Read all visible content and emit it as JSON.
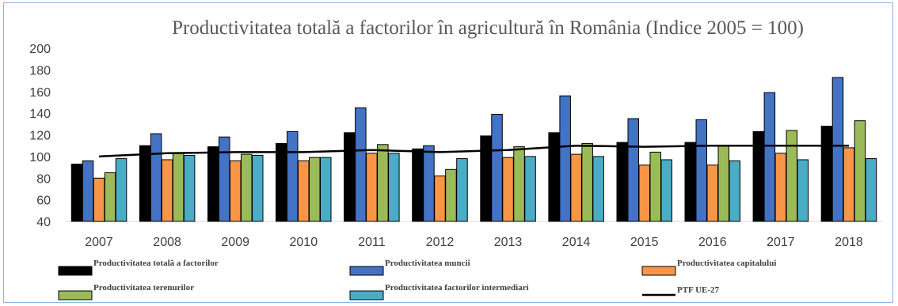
{
  "chart_data": {
    "type": "bar",
    "title": "Productivitatea totală a factorilor în agricultură în România (Indice 2005 = 100)",
    "categories": [
      "2007",
      "2008",
      "2009",
      "2010",
      "2011",
      "2012",
      "2013",
      "2014",
      "2015",
      "2016",
      "2017",
      "2018"
    ],
    "ylim": [
      40,
      200
    ],
    "yticks": [
      40,
      60,
      80,
      100,
      120,
      140,
      160,
      180,
      200
    ],
    "grid": false,
    "legend_position": "bottom",
    "series": [
      {
        "name": "Productivitatea totală a factorilor",
        "kind": "bar",
        "color": "#000000",
        "values": [
          93,
          110,
          109,
          112,
          122,
          107,
          119,
          122,
          113,
          113,
          123,
          128
        ]
      },
      {
        "name": "Productivitatea muncii",
        "kind": "bar",
        "color": "#4472c4",
        "values": [
          96,
          121,
          118,
          123,
          145,
          110,
          139,
          156,
          135,
          134,
          159,
          173
        ]
      },
      {
        "name": "Productivitatea capitalului",
        "kind": "bar",
        "color": "#f79646",
        "values": [
          80,
          97,
          96,
          96,
          103,
          82,
          99,
          102,
          92,
          92,
          103,
          108
        ]
      },
      {
        "name": "Productivitatea terenurilor",
        "kind": "bar",
        "color": "#9bbb59",
        "values": [
          85,
          103,
          102,
          99,
          111,
          88,
          109,
          112,
          104,
          110,
          124,
          133
        ]
      },
      {
        "name": "Productivitatea factorilor intermediari",
        "kind": "bar",
        "color": "#4bacc6",
        "values": [
          98,
          101,
          101,
          99,
          103,
          98,
          100,
          100,
          97,
          96,
          97,
          98
        ]
      },
      {
        "name": "PTF UE-27",
        "kind": "line",
        "color": "#000000",
        "values": [
          100,
          103,
          104,
          104,
          106,
          104,
          106,
          110,
          109,
          110,
          110,
          110
        ]
      }
    ]
  }
}
